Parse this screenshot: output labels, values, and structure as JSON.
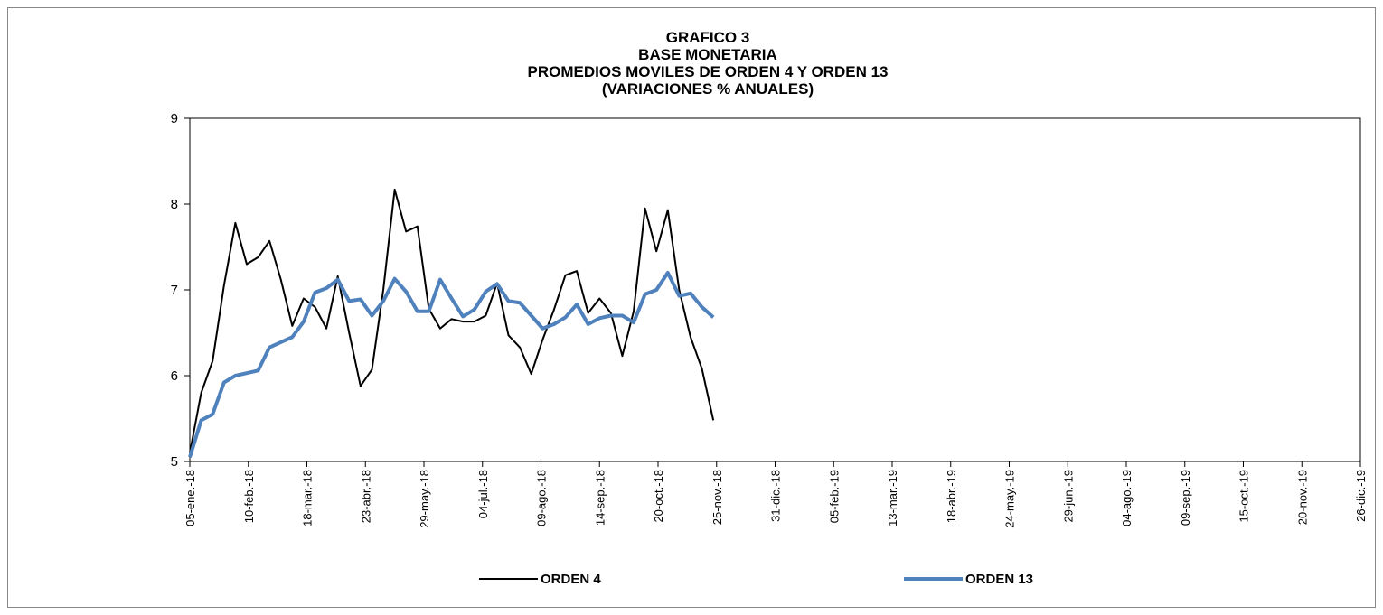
{
  "chart_data": {
    "type": "line",
    "title": [
      "GRAFICO 3",
      "BASE MONETARIA",
      "PROMEDIOS MOVILES DE ORDEN 4 Y ORDEN 13",
      "(VARIACIONES % ANUALES)"
    ],
    "x": [
      "2018-01-05",
      "2018-01-12",
      "2018-01-19",
      "2018-01-26",
      "2018-02-02",
      "2018-02-09",
      "2018-02-16",
      "2018-02-23",
      "2018-03-02",
      "2018-03-09",
      "2018-03-16",
      "2018-03-23",
      "2018-03-30",
      "2018-04-06",
      "2018-04-13",
      "2018-04-20",
      "2018-04-27",
      "2018-05-04",
      "2018-05-11",
      "2018-05-18",
      "2018-05-25",
      "2018-06-01",
      "2018-06-08",
      "2018-06-15",
      "2018-06-22",
      "2018-06-29",
      "2018-07-06",
      "2018-07-13",
      "2018-07-20",
      "2018-07-27",
      "2018-08-03",
      "2018-08-10",
      "2018-08-17",
      "2018-08-24",
      "2018-08-31",
      "2018-09-07",
      "2018-09-14",
      "2018-09-21",
      "2018-09-28",
      "2018-10-05",
      "2018-10-12",
      "2018-10-19",
      "2018-10-26",
      "2018-11-02",
      "2018-11-09",
      "2018-11-16",
      "2018-11-23"
    ],
    "series": [
      {
        "name": "ORDEN 4",
        "color": "#000000",
        "width": 2,
        "values": [
          5.1,
          5.8,
          6.17,
          7.05,
          7.78,
          7.3,
          7.38,
          7.57,
          7.12,
          6.58,
          6.9,
          6.8,
          6.55,
          7.16,
          6.5,
          5.88,
          6.07,
          7.0,
          8.17,
          7.68,
          7.74,
          6.78,
          6.55,
          6.66,
          6.63,
          6.63,
          6.7,
          7.08,
          6.47,
          6.33,
          6.02,
          6.42,
          6.77,
          7.17,
          7.22,
          6.73,
          6.9,
          6.73,
          6.23,
          6.75,
          7.95,
          7.45,
          7.93,
          7.0,
          6.45,
          6.08,
          5.48
        ]
      },
      {
        "name": "ORDEN 13",
        "color": "#4f81bd",
        "width": 4,
        "values": [
          5.05,
          5.48,
          5.55,
          5.92,
          6.0,
          6.03,
          6.06,
          6.33,
          6.39,
          6.45,
          6.63,
          6.97,
          7.02,
          7.12,
          6.87,
          6.89,
          6.7,
          6.87,
          7.13,
          6.98,
          6.75,
          6.75,
          7.12,
          6.9,
          6.69,
          6.77,
          6.98,
          7.07,
          6.87,
          6.85,
          6.7,
          6.55,
          6.6,
          6.68,
          6.83,
          6.6,
          6.67,
          6.7,
          6.7,
          6.62,
          6.95,
          7.0,
          7.2,
          6.93,
          6.96,
          6.8,
          6.68
        ]
      }
    ],
    "xlim": [
      "2018-01-05",
      "2019-12-26"
    ],
    "xticks": [
      {
        "value": "2018-01-05",
        "label": "05-ene.-18"
      },
      {
        "value": "2018-02-10",
        "label": "10-feb.-18"
      },
      {
        "value": "2018-03-18",
        "label": "18-mar.-18"
      },
      {
        "value": "2018-04-23",
        "label": "23-abr.-18"
      },
      {
        "value": "2018-05-29",
        "label": "29-may.-18"
      },
      {
        "value": "2018-07-04",
        "label": "04-jul.-18"
      },
      {
        "value": "2018-08-09",
        "label": "09-ago.-18"
      },
      {
        "value": "2018-09-14",
        "label": "14-sep.-18"
      },
      {
        "value": "2018-10-20",
        "label": "20-oct.-18"
      },
      {
        "value": "2018-11-25",
        "label": "25-nov.-18"
      },
      {
        "value": "2018-12-31",
        "label": "31-dic.-18"
      },
      {
        "value": "2019-02-05",
        "label": "05-feb.-19"
      },
      {
        "value": "2019-03-13",
        "label": "13-mar.-19"
      },
      {
        "value": "2019-04-18",
        "label": "18-abr.-19"
      },
      {
        "value": "2019-05-24",
        "label": "24-may.-19"
      },
      {
        "value": "2019-06-29",
        "label": "29-jun.-19"
      },
      {
        "value": "2019-08-04",
        "label": "04-ago.-19"
      },
      {
        "value": "2019-09-09",
        "label": "09-sep.-19"
      },
      {
        "value": "2019-10-15",
        "label": "15-oct.-19"
      },
      {
        "value": "2019-11-20",
        "label": "20-nov.-19"
      },
      {
        "value": "2019-12-26",
        "label": "26-dic.-19"
      }
    ],
    "ylim": [
      5,
      9
    ],
    "yticks": [
      5,
      6,
      7,
      8,
      9
    ],
    "grid": false,
    "legend": "bottom"
  }
}
